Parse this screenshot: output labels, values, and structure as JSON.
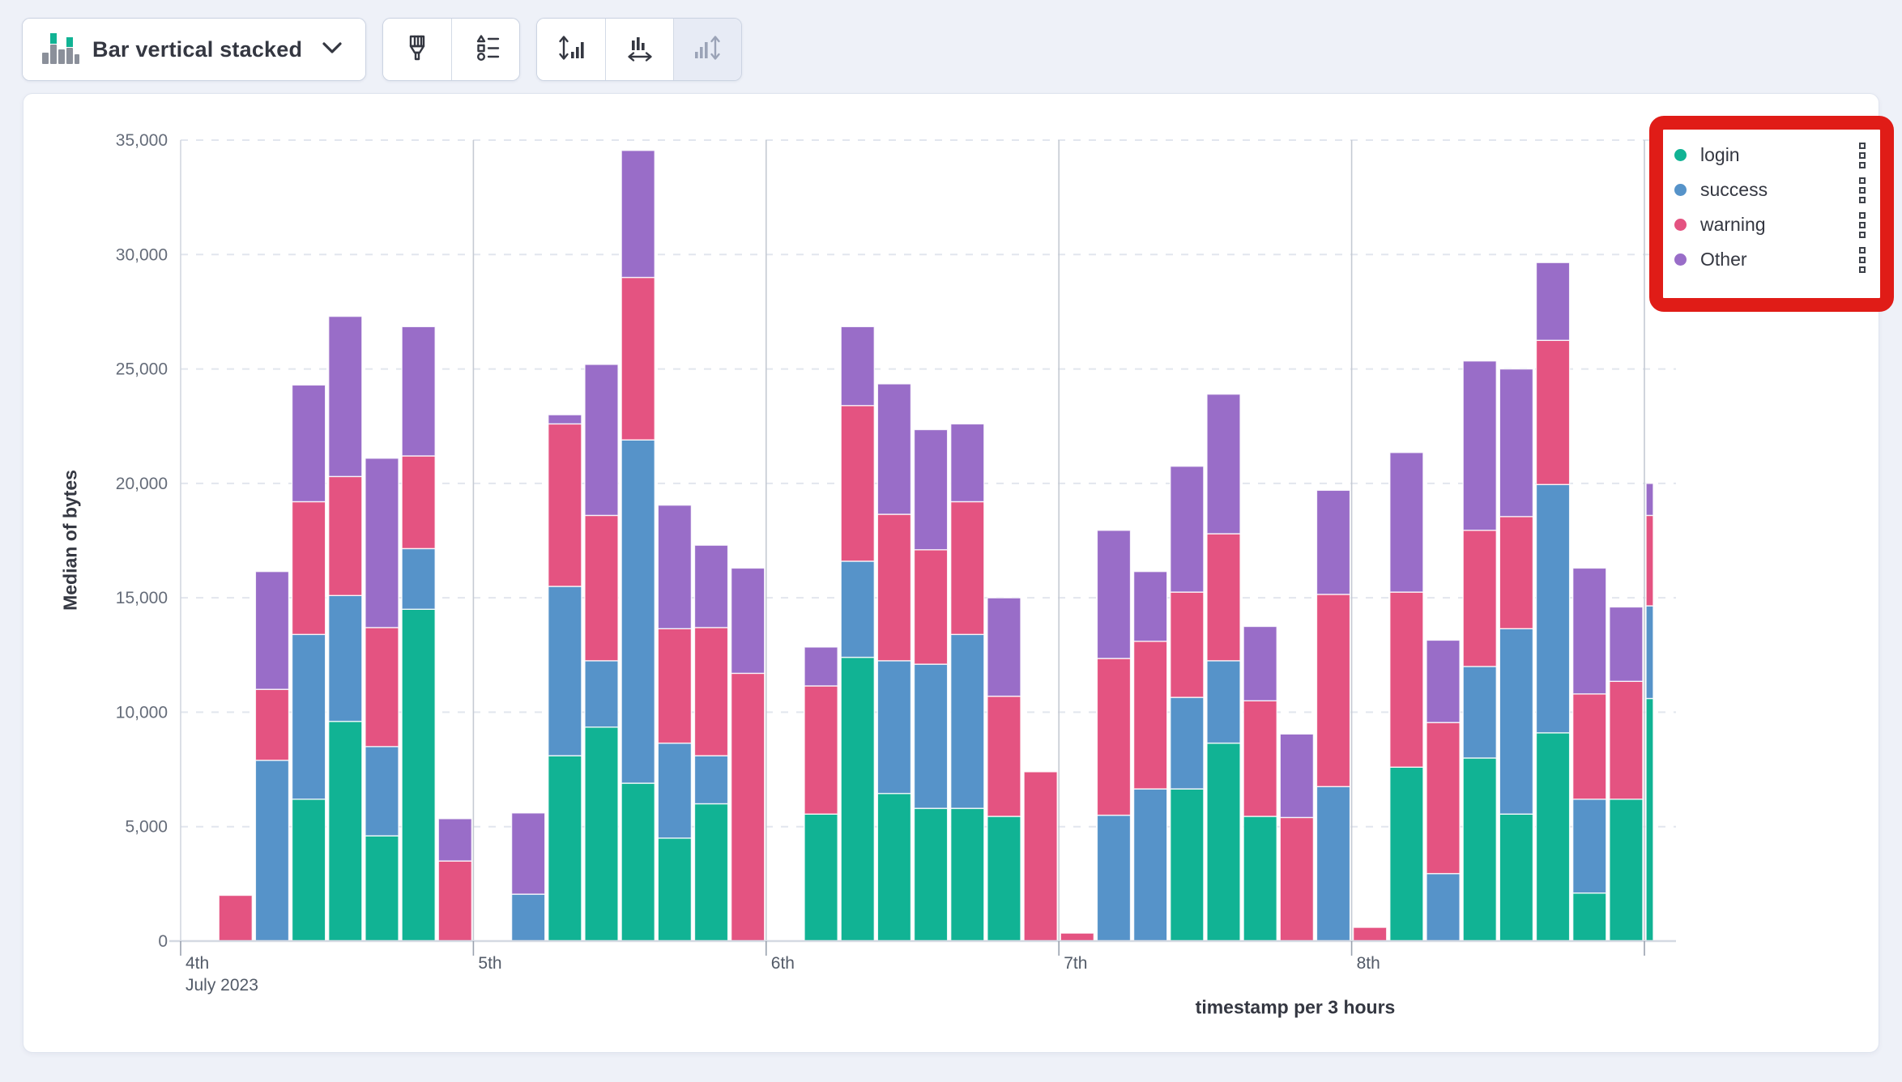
{
  "toolbar": {
    "chart_type": {
      "label": "Bar vertical stacked",
      "icon": "bar-vertical-stacked-icon"
    },
    "style_group": [
      {
        "icon": "paintbrush-icon"
      },
      {
        "icon": "vis-options-icon"
      }
    ],
    "axis_group": [
      {
        "icon": "axis-left-icon",
        "disabled": false
      },
      {
        "icon": "axis-bottom-icon",
        "disabled": false
      },
      {
        "icon": "axis-right-icon",
        "disabled": true
      }
    ]
  },
  "legend": {
    "annotation_box_color": "#E01C17",
    "items": [
      {
        "label": "login",
        "color": "#11B394"
      },
      {
        "label": "success",
        "color": "#5693C9"
      },
      {
        "label": "warning",
        "color": "#E45381"
      },
      {
        "label": "Other",
        "color": "#996DC8"
      }
    ]
  },
  "chart_data": {
    "type": "bar",
    "stacked": true,
    "title": "",
    "ylabel": "Median of bytes",
    "xlabel": "timestamp per 3 hours",
    "ylim": [
      0,
      35000
    ],
    "ytick_step": 5000,
    "grid": true,
    "legend_position": "right",
    "series": [
      "login",
      "success",
      "warning",
      "Other"
    ],
    "colors": [
      "#11B394",
      "#5693C9",
      "#E45381",
      "#996DC8"
    ],
    "slots_per_day": 8,
    "hours_per_slot": 3,
    "days": [
      {
        "label": "4th",
        "sublabel": "July 2023"
      },
      {
        "label": "5th",
        "sublabel": ""
      },
      {
        "label": "6th",
        "sublabel": ""
      },
      {
        "label": "7th",
        "sublabel": ""
      },
      {
        "label": "8th",
        "sublabel": ""
      }
    ],
    "bars": [
      {
        "day": 0,
        "slot": 1,
        "values": [
          0,
          0,
          2000,
          0
        ]
      },
      {
        "day": 0,
        "slot": 2,
        "values": [
          0,
          7900,
          3100,
          5150
        ]
      },
      {
        "day": 0,
        "slot": 3,
        "values": [
          6200,
          7200,
          5800,
          5100
        ]
      },
      {
        "day": 0,
        "slot": 4,
        "values": [
          9600,
          5500,
          5200,
          7000
        ]
      },
      {
        "day": 0,
        "slot": 5,
        "values": [
          4600,
          3900,
          5200,
          7400
        ]
      },
      {
        "day": 0,
        "slot": 6,
        "values": [
          14500,
          2650,
          4050,
          5650
        ]
      },
      {
        "day": 0,
        "slot": 7,
        "values": [
          0,
          0,
          3500,
          1850
        ]
      },
      {
        "day": 1,
        "slot": 1,
        "values": [
          0,
          2050,
          0,
          3550
        ]
      },
      {
        "day": 1,
        "slot": 2,
        "values": [
          8100,
          7400,
          7100,
          400
        ]
      },
      {
        "day": 1,
        "slot": 3,
        "values": [
          9350,
          2900,
          6350,
          6600
        ]
      },
      {
        "day": 1,
        "slot": 4,
        "values": [
          6900,
          15000,
          7100,
          5550
        ]
      },
      {
        "day": 1,
        "slot": 5,
        "values": [
          4500,
          4150,
          5000,
          5400
        ]
      },
      {
        "day": 1,
        "slot": 6,
        "values": [
          6000,
          2100,
          5600,
          3600
        ]
      },
      {
        "day": 1,
        "slot": 7,
        "values": [
          0,
          0,
          11700,
          4600
        ]
      },
      {
        "day": 2,
        "slot": 1,
        "values": [
          5550,
          0,
          5600,
          1700
        ]
      },
      {
        "day": 2,
        "slot": 2,
        "values": [
          12400,
          4200,
          6800,
          3450
        ]
      },
      {
        "day": 2,
        "slot": 3,
        "values": [
          6450,
          5800,
          6400,
          5700
        ]
      },
      {
        "day": 2,
        "slot": 4,
        "values": [
          5800,
          6300,
          5000,
          5250
        ]
      },
      {
        "day": 2,
        "slot": 5,
        "values": [
          5800,
          7600,
          5800,
          3400
        ]
      },
      {
        "day": 2,
        "slot": 6,
        "values": [
          5450,
          0,
          5250,
          4300
        ]
      },
      {
        "day": 2,
        "slot": 7,
        "values": [
          0,
          0,
          7400,
          0
        ]
      },
      {
        "day": 3,
        "slot": 0,
        "values": [
          0,
          0,
          350,
          0
        ]
      },
      {
        "day": 3,
        "slot": 1,
        "values": [
          0,
          5500,
          6850,
          5600
        ]
      },
      {
        "day": 3,
        "slot": 2,
        "values": [
          0,
          6650,
          6450,
          3050
        ]
      },
      {
        "day": 3,
        "slot": 3,
        "values": [
          6650,
          4000,
          4600,
          5500
        ]
      },
      {
        "day": 3,
        "slot": 4,
        "values": [
          8650,
          3600,
          5550,
          6100
        ]
      },
      {
        "day": 3,
        "slot": 5,
        "values": [
          5450,
          0,
          5050,
          3250
        ]
      },
      {
        "day": 3,
        "slot": 6,
        "values": [
          0,
          0,
          5400,
          3650
        ]
      },
      {
        "day": 3,
        "slot": 7,
        "values": [
          0,
          6750,
          8400,
          4550
        ]
      },
      {
        "day": 4,
        "slot": 0,
        "values": [
          0,
          0,
          600,
          0
        ]
      },
      {
        "day": 4,
        "slot": 1,
        "values": [
          7600,
          0,
          7650,
          6100
        ]
      },
      {
        "day": 4,
        "slot": 2,
        "values": [
          0,
          2950,
          6600,
          3600
        ]
      },
      {
        "day": 4,
        "slot": 3,
        "values": [
          8000,
          4000,
          5950,
          7400
        ]
      },
      {
        "day": 4,
        "slot": 4,
        "values": [
          5550,
          8100,
          4900,
          6450
        ]
      },
      {
        "day": 4,
        "slot": 5,
        "values": [
          9100,
          10850,
          6300,
          3400
        ]
      },
      {
        "day": 4,
        "slot": 6,
        "values": [
          2100,
          4100,
          4600,
          5500
        ]
      },
      {
        "day": 4,
        "slot": 7,
        "values": [
          6200,
          0,
          5150,
          3250
        ]
      },
      {
        "day": 5,
        "slot": 0,
        "values": [
          10600,
          4050,
          3950,
          1400
        ],
        "clipped": true
      }
    ]
  }
}
